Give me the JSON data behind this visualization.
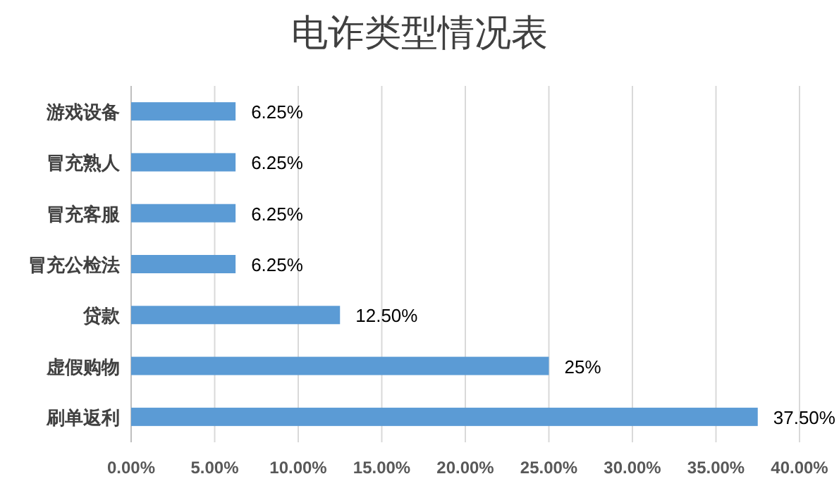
{
  "chart_data": {
    "type": "bar",
    "orientation": "horizontal",
    "title": "电诈类型情况表",
    "categories": [
      "游戏设备",
      "冒充熟人",
      "冒充客服",
      "冒充公检法",
      "贷款",
      "虚假购物",
      "刷单返利"
    ],
    "values": [
      6.25,
      6.25,
      6.25,
      6.25,
      12.5,
      25,
      37.5
    ],
    "value_labels": [
      "6.25%",
      "6.25%",
      "6.25%",
      "6.25%",
      "12.50%",
      "25%",
      "37.50%"
    ],
    "color": "#5b9bd5",
    "xlim": [
      0,
      40
    ],
    "xticks": [
      {
        "value": 0,
        "label": "0.00%"
      },
      {
        "value": 5,
        "label": "5.00%"
      },
      {
        "value": 10,
        "label": "10.00%"
      },
      {
        "value": 15,
        "label": "15.00%"
      },
      {
        "value": 20,
        "label": "20.00%"
      },
      {
        "value": 25,
        "label": "25.00%"
      },
      {
        "value": 30,
        "label": "30.00%"
      },
      {
        "value": 35,
        "label": "35.00%"
      },
      {
        "value": 40,
        "label": "40.00%"
      }
    ],
    "grid": "x"
  }
}
